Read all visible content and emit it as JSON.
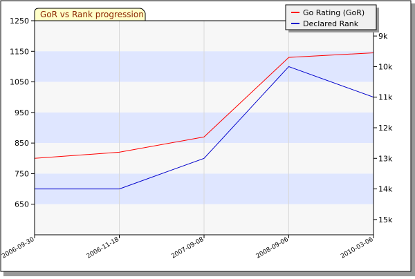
{
  "chart_data": {
    "type": "line",
    "title": "GoR vs Rank progression",
    "x": [
      "2006-09-30",
      "2006-11-18",
      "2007-09-08",
      "2008-09-06",
      "2010-03-06"
    ],
    "left_axis": {
      "ylim": [
        550,
        1250
      ],
      "ticks": [
        1250,
        1150,
        1050,
        950,
        850,
        750,
        650
      ]
    },
    "right_axis": {
      "tick_labels": [
        "9k",
        "10k",
        "11k",
        "12k",
        "13k",
        "14k",
        "15k"
      ],
      "tick_values": [
        1200,
        1100,
        1000,
        900,
        800,
        700,
        600
      ]
    },
    "series": [
      {
        "name": "Go Rating (GoR)",
        "color": "#ff0000",
        "values": [
          800,
          820,
          870,
          1130,
          1145
        ]
      },
      {
        "name": "Declared Rank",
        "color": "#0000cc",
        "values": [
          700,
          700,
          800,
          1100,
          1000
        ]
      }
    ],
    "grid": true,
    "legend_position": "top-right",
    "band_colors": [
      "#f7f7f7",
      "#dfe6ff"
    ]
  }
}
